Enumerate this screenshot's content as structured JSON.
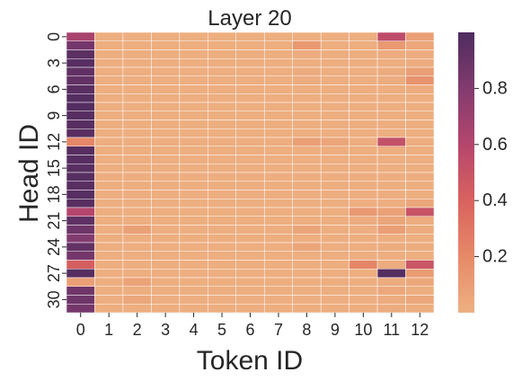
{
  "chart_data": {
    "type": "heatmap",
    "title": "Layer 20",
    "xlabel": "Token ID",
    "ylabel": "Head ID",
    "x_categories": [
      "0",
      "1",
      "2",
      "3",
      "4",
      "5",
      "6",
      "7",
      "8",
      "9",
      "10",
      "11",
      "12"
    ],
    "y_tick_labels": [
      "0",
      "3",
      "6",
      "9",
      "12",
      "15",
      "18",
      "21",
      "24",
      "27",
      "30"
    ],
    "y_tick_rows": [
      0,
      3,
      6,
      9,
      12,
      15,
      18,
      21,
      24,
      27,
      30
    ],
    "n_rows": 32,
    "colorbar": {
      "ticks": [
        0.2,
        0.4,
        0.6,
        0.8
      ],
      "tick_labels": [
        "0.2",
        "0.4",
        "0.6",
        "0.8"
      ],
      "range": [
        0.0,
        1.0
      ]
    },
    "colormap": [
      "#edb081",
      "#e68a68",
      "#d9625f",
      "#b4466d",
      "#823b6f",
      "#4f2c5f"
    ],
    "grid": "white cell separators",
    "values": [
      [
        0.65,
        0.01,
        0.01,
        0.01,
        0.01,
        0.01,
        0.01,
        0.01,
        0.01,
        0.01,
        0.01,
        0.55,
        0.08
      ],
      [
        0.85,
        0.01,
        0.01,
        0.01,
        0.01,
        0.01,
        0.01,
        0.01,
        0.12,
        0.01,
        0.01,
        0.12,
        0.05
      ],
      [
        0.95,
        0.01,
        0.01,
        0.01,
        0.01,
        0.01,
        0.01,
        0.01,
        0.02,
        0.01,
        0.01,
        0.02,
        0.02
      ],
      [
        0.97,
        0.01,
        0.01,
        0.01,
        0.01,
        0.01,
        0.01,
        0.01,
        0.01,
        0.01,
        0.01,
        0.01,
        0.02
      ],
      [
        0.93,
        0.01,
        0.01,
        0.01,
        0.01,
        0.01,
        0.01,
        0.01,
        0.02,
        0.01,
        0.01,
        0.02,
        0.09
      ],
      [
        0.92,
        0.01,
        0.01,
        0.01,
        0.01,
        0.01,
        0.01,
        0.01,
        0.02,
        0.01,
        0.01,
        0.02,
        0.15
      ],
      [
        0.96,
        0.01,
        0.01,
        0.01,
        0.01,
        0.01,
        0.01,
        0.01,
        0.01,
        0.01,
        0.01,
        0.01,
        0.02
      ],
      [
        0.98,
        0.01,
        0.01,
        0.01,
        0.01,
        0.01,
        0.01,
        0.01,
        0.01,
        0.01,
        0.01,
        0.01,
        0.01
      ],
      [
        0.98,
        0.01,
        0.01,
        0.01,
        0.01,
        0.01,
        0.01,
        0.01,
        0.01,
        0.01,
        0.01,
        0.01,
        0.01
      ],
      [
        0.97,
        0.01,
        0.01,
        0.01,
        0.01,
        0.01,
        0.01,
        0.01,
        0.01,
        0.01,
        0.01,
        0.01,
        0.01
      ],
      [
        0.97,
        0.01,
        0.01,
        0.01,
        0.01,
        0.01,
        0.01,
        0.01,
        0.01,
        0.01,
        0.01,
        0.01,
        0.01
      ],
      [
        0.96,
        0.01,
        0.01,
        0.01,
        0.01,
        0.01,
        0.01,
        0.01,
        0.01,
        0.01,
        0.01,
        0.01,
        0.01
      ],
      [
        0.22,
        0.01,
        0.01,
        0.01,
        0.01,
        0.01,
        0.01,
        0.01,
        0.09,
        0.06,
        0.01,
        0.52,
        0.01
      ],
      [
        0.97,
        0.01,
        0.01,
        0.01,
        0.01,
        0.01,
        0.01,
        0.01,
        0.01,
        0.01,
        0.01,
        0.01,
        0.01
      ],
      [
        0.97,
        0.01,
        0.01,
        0.01,
        0.01,
        0.01,
        0.01,
        0.01,
        0.01,
        0.01,
        0.01,
        0.01,
        0.01
      ],
      [
        0.96,
        0.01,
        0.01,
        0.01,
        0.01,
        0.01,
        0.01,
        0.01,
        0.01,
        0.01,
        0.01,
        0.01,
        0.01
      ],
      [
        0.97,
        0.01,
        0.01,
        0.01,
        0.01,
        0.01,
        0.01,
        0.01,
        0.01,
        0.01,
        0.01,
        0.01,
        0.01
      ],
      [
        0.96,
        0.01,
        0.01,
        0.01,
        0.01,
        0.01,
        0.01,
        0.01,
        0.01,
        0.01,
        0.01,
        0.01,
        0.01
      ],
      [
        0.97,
        0.01,
        0.01,
        0.01,
        0.01,
        0.01,
        0.01,
        0.01,
        0.01,
        0.01,
        0.01,
        0.01,
        0.01
      ],
      [
        0.96,
        0.01,
        0.01,
        0.01,
        0.01,
        0.01,
        0.01,
        0.01,
        0.01,
        0.01,
        0.01,
        0.01,
        0.05
      ],
      [
        0.6,
        0.01,
        0.01,
        0.01,
        0.01,
        0.01,
        0.01,
        0.01,
        0.01,
        0.01,
        0.12,
        0.08,
        0.5
      ],
      [
        0.94,
        0.01,
        0.01,
        0.01,
        0.01,
        0.01,
        0.01,
        0.01,
        0.01,
        0.01,
        0.02,
        0.06,
        0.02
      ],
      [
        0.88,
        0.01,
        0.08,
        0.01,
        0.01,
        0.01,
        0.01,
        0.01,
        0.06,
        0.01,
        0.01,
        0.09,
        0.02
      ],
      [
        0.8,
        0.01,
        0.01,
        0.01,
        0.01,
        0.01,
        0.01,
        0.01,
        0.01,
        0.01,
        0.01,
        0.01,
        0.01
      ],
      [
        0.92,
        0.01,
        0.01,
        0.01,
        0.01,
        0.01,
        0.01,
        0.01,
        0.06,
        0.01,
        0.01,
        0.02,
        0.02
      ],
      [
        0.85,
        0.01,
        0.01,
        0.01,
        0.01,
        0.01,
        0.01,
        0.01,
        0.01,
        0.01,
        0.01,
        0.01,
        0.01
      ],
      [
        0.42,
        0.01,
        0.01,
        0.01,
        0.01,
        0.01,
        0.01,
        0.01,
        0.01,
        0.01,
        0.22,
        0.02,
        0.48
      ],
      [
        0.97,
        0.01,
        0.01,
        0.01,
        0.01,
        0.01,
        0.01,
        0.01,
        0.01,
        0.01,
        0.01,
        0.98,
        0.1
      ],
      [
        0.09,
        0.01,
        0.07,
        0.01,
        0.01,
        0.01,
        0.01,
        0.01,
        0.01,
        0.01,
        0.01,
        0.02,
        0.04
      ],
      [
        0.87,
        0.01,
        0.01,
        0.01,
        0.01,
        0.01,
        0.01,
        0.01,
        0.01,
        0.01,
        0.01,
        0.04,
        0.01
      ],
      [
        0.88,
        0.01,
        0.05,
        0.01,
        0.01,
        0.01,
        0.01,
        0.01,
        0.01,
        0.01,
        0.01,
        0.02,
        0.05
      ],
      [
        0.85,
        0.01,
        0.01,
        0.01,
        0.01,
        0.01,
        0.01,
        0.01,
        0.01,
        0.01,
        0.01,
        0.02,
        0.01
      ]
    ]
  }
}
